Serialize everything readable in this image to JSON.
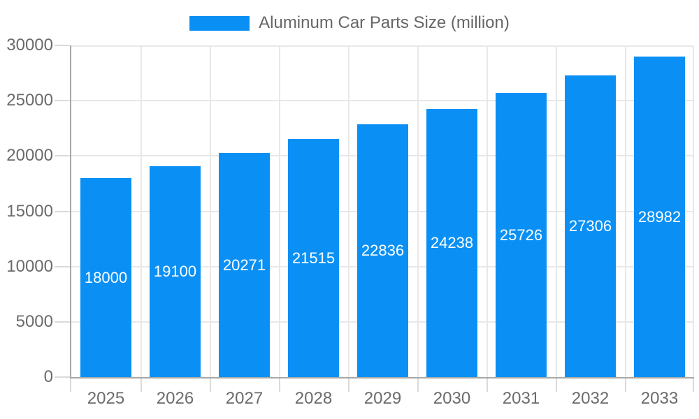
{
  "chart_data": {
    "type": "bar",
    "legend": "Aluminum Car Parts Size (million)",
    "legend_position": "top",
    "categories": [
      "2025",
      "2026",
      "2027",
      "2028",
      "2029",
      "2030",
      "2031",
      "2032",
      "2033"
    ],
    "values": [
      18000,
      19100,
      20271,
      21515,
      22836,
      24238,
      25726,
      27306,
      28982
    ],
    "bar_labels": [
      "18000",
      "19100",
      "20271",
      "21515",
      "22836",
      "24238",
      "25726",
      "27306",
      "28982"
    ],
    "ylim": [
      0,
      30000
    ],
    "yticks": [
      0,
      5000,
      10000,
      15000,
      20000,
      25000,
      30000
    ],
    "ytick_labels": [
      "0",
      "5000",
      "10000",
      "15000",
      "20000",
      "25000",
      "30000"
    ],
    "grid": true
  },
  "colors": {
    "bar": "#0a90f5",
    "grid": "#e8e8e8",
    "axis": "#a8a8a8",
    "tick": "#dadada",
    "tick_text": "#6b6b6b",
    "legend_text": "#666666",
    "bar_label_text": "#ffffff",
    "background": "#ffffff"
  }
}
